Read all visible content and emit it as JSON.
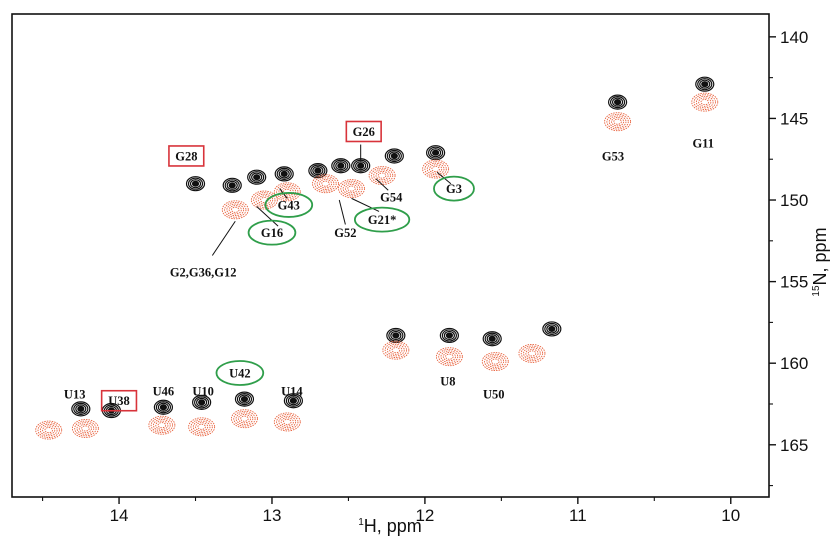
{
  "chart_data": {
    "type": "scatter",
    "title": "",
    "xlabel": {
      "sup": "1",
      "text": "H, ppm"
    },
    "ylabel": {
      "sup": "15",
      "text": "N, ppm"
    },
    "xlim": [
      14.7,
      9.75
    ],
    "ylim": [
      138.6,
      168.2
    ],
    "x_reversed": true,
    "y_reversed": true,
    "grid": false,
    "xticks": [
      14,
      13,
      12,
      11,
      10
    ],
    "yticks": [
      140,
      145,
      150,
      155,
      160,
      165
    ],
    "series": [
      {
        "color": "#111111",
        "points": [
          {
            "x": 10.17,
            "y": 142.9
          },
          {
            "x": 10.74,
            "y": 144.0
          },
          {
            "x": 11.93,
            "y": 147.1
          },
          {
            "x": 12.2,
            "y": 147.3
          },
          {
            "x": 12.42,
            "y": 147.9
          },
          {
            "x": 12.55,
            "y": 147.9
          },
          {
            "x": 12.7,
            "y": 148.2
          },
          {
            "x": 12.92,
            "y": 148.4
          },
          {
            "x": 13.1,
            "y": 148.6
          },
          {
            "x": 13.26,
            "y": 149.1
          },
          {
            "x": 13.5,
            "y": 149.0
          },
          {
            "x": 12.19,
            "y": 158.3
          },
          {
            "x": 11.84,
            "y": 158.3
          },
          {
            "x": 11.56,
            "y": 158.5
          },
          {
            "x": 11.17,
            "y": 157.9
          },
          {
            "x": 14.25,
            "y": 162.8
          },
          {
            "x": 14.05,
            "y": 162.9
          },
          {
            "x": 13.71,
            "y": 162.7
          },
          {
            "x": 13.46,
            "y": 162.4
          },
          {
            "x": 13.18,
            "y": 162.2
          },
          {
            "x": 12.86,
            "y": 162.3
          }
        ]
      },
      {
        "color": "#e8613c",
        "points": [
          {
            "x": 10.17,
            "y": 144.0
          },
          {
            "x": 10.74,
            "y": 145.2
          },
          {
            "x": 11.93,
            "y": 148.1
          },
          {
            "x": 12.28,
            "y": 148.5
          },
          {
            "x": 12.48,
            "y": 149.3
          },
          {
            "x": 12.65,
            "y": 149.0
          },
          {
            "x": 12.9,
            "y": 149.5
          },
          {
            "x": 13.05,
            "y": 150.0
          },
          {
            "x": 13.24,
            "y": 150.6
          },
          {
            "x": 12.19,
            "y": 159.2
          },
          {
            "x": 11.84,
            "y": 159.6
          },
          {
            "x": 11.54,
            "y": 159.9
          },
          {
            "x": 11.3,
            "y": 159.4
          },
          {
            "x": 14.46,
            "y": 164.1
          },
          {
            "x": 14.22,
            "y": 164.0
          },
          {
            "x": 13.72,
            "y": 163.8
          },
          {
            "x": 13.46,
            "y": 163.9
          },
          {
            "x": 13.18,
            "y": 163.4
          },
          {
            "x": 12.9,
            "y": 163.6
          }
        ]
      }
    ],
    "annotations": [
      {
        "text": "G11",
        "x": 10.18,
        "y": 146.5,
        "mark": "none"
      },
      {
        "text": "G53",
        "x": 10.77,
        "y": 147.3,
        "mark": "none"
      },
      {
        "text": "G28",
        "x": 13.56,
        "y": 147.3,
        "mark": "red-box"
      },
      {
        "text": "G26",
        "x": 12.4,
        "y": 145.8,
        "mark": "red-box"
      },
      {
        "text": "G54",
        "x": 12.22,
        "y": 149.8,
        "mark": "none"
      },
      {
        "text": "G3",
        "x": 11.81,
        "y": 149.3,
        "mark": "green-ellipse"
      },
      {
        "text": "G43",
        "x": 12.89,
        "y": 150.3,
        "mark": "green-ellipse"
      },
      {
        "text": "G16",
        "x": 13.0,
        "y": 152.0,
        "mark": "green-ellipse"
      },
      {
        "text": "G21*",
        "x": 12.28,
        "y": 151.2,
        "mark": "green-ellipse"
      },
      {
        "text": "G52",
        "x": 12.52,
        "y": 152.0,
        "mark": "none"
      },
      {
        "text": "G2,G36,G12",
        "x": 13.45,
        "y": 154.4,
        "mark": "none"
      },
      {
        "text": "U8",
        "x": 11.85,
        "y": 161.1,
        "mark": "none"
      },
      {
        "text": "U50",
        "x": 11.55,
        "y": 161.9,
        "mark": "none"
      },
      {
        "text": "U13",
        "x": 14.29,
        "y": 161.9,
        "mark": "none"
      },
      {
        "text": "U38",
        "x": 14.0,
        "y": 162.3,
        "mark": "red-box"
      },
      {
        "text": "U46",
        "x": 13.71,
        "y": 161.7,
        "mark": "none"
      },
      {
        "text": "U10",
        "x": 13.45,
        "y": 161.7,
        "mark": "none"
      },
      {
        "text": "U42",
        "x": 13.21,
        "y": 160.6,
        "mark": "green-ellipse"
      },
      {
        "text": "U14",
        "x": 12.87,
        "y": 161.7,
        "mark": "none"
      }
    ],
    "leader_lines": [
      {
        "from": [
          13.39,
          153.4
        ],
        "to": [
          13.24,
          151.3
        ]
      },
      {
        "from": [
          12.96,
          151.6
        ],
        "to": [
          13.1,
          150.4
        ]
      },
      {
        "from": [
          12.9,
          149.9
        ],
        "to": [
          12.95,
          149.3
        ]
      },
      {
        "from": [
          12.52,
          151.5
        ],
        "to": [
          12.56,
          150.0
        ]
      },
      {
        "from": [
          12.3,
          150.7
        ],
        "to": [
          12.48,
          149.9
        ]
      },
      {
        "from": [
          12.24,
          149.4
        ],
        "to": [
          12.32,
          148.7
        ]
      },
      {
        "from": [
          12.42,
          146.6
        ],
        "to": [
          12.42,
          147.6
        ]
      },
      {
        "from": [
          11.83,
          149.0
        ],
        "to": [
          11.92,
          148.3
        ]
      }
    ],
    "colors": {
      "black_contours": "#111111",
      "red_contours": "#e8613c",
      "label_box": "#d8333a",
      "label_ellipse": "#2f9e4a"
    }
  }
}
